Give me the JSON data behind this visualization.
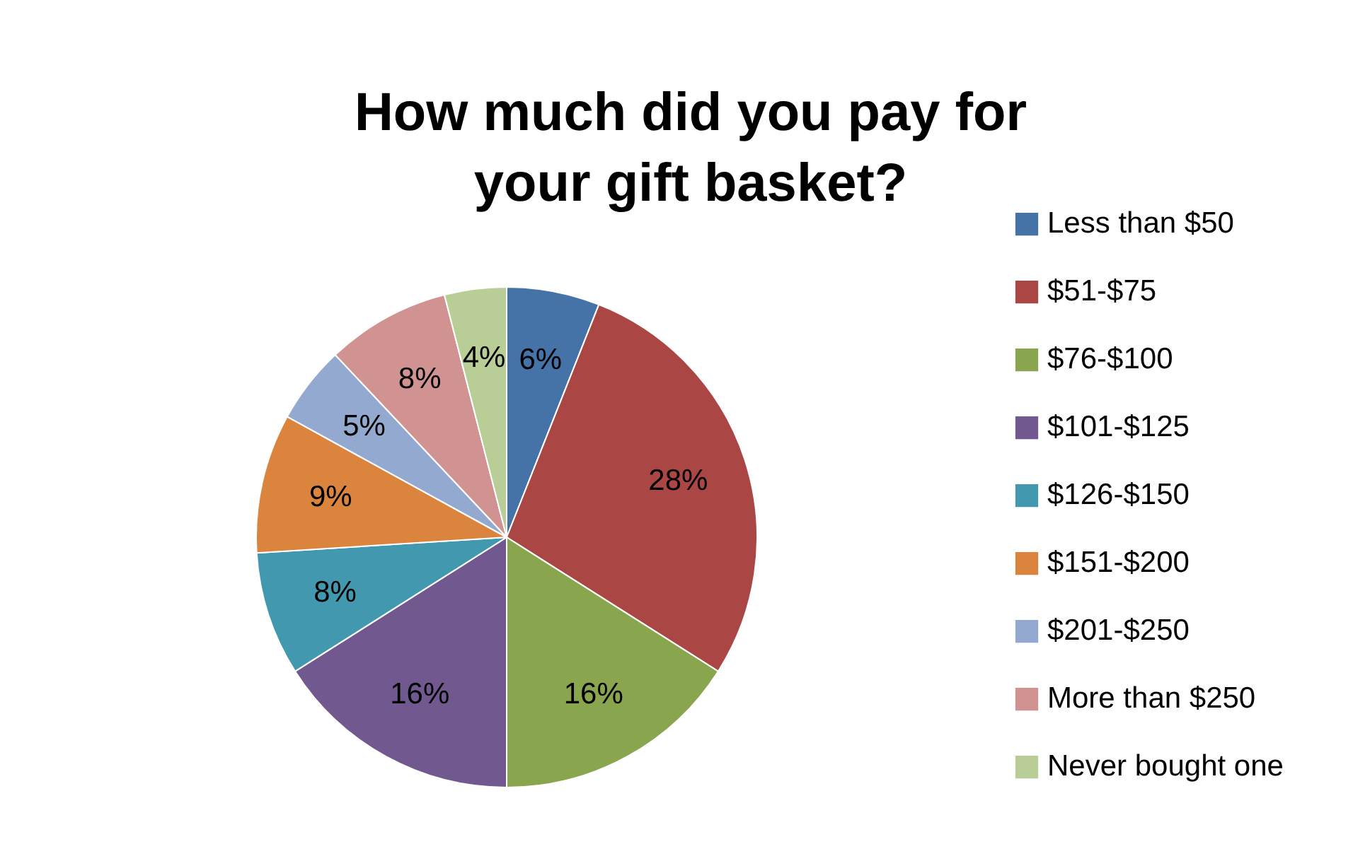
{
  "chart_data": {
    "type": "pie",
    "title": "How much did you pay for your gift basket?",
    "categories": [
      "Less than $50",
      "$51-$75",
      "$76-$100",
      "$101-$125",
      "$126-$150",
      "$151-$200",
      "$201-$250",
      "More than $250",
      "Never bought one"
    ],
    "values": [
      6,
      28,
      16,
      16,
      8,
      9,
      5,
      8,
      4
    ],
    "value_labels": [
      "6%",
      "28%",
      "16%",
      "16%",
      "8%",
      "9%",
      "5%",
      "8%",
      "4%"
    ],
    "colors": [
      "#4572a7",
      "#aa4643",
      "#89a54e",
      "#71588f",
      "#4198af",
      "#db843d",
      "#93a9cf",
      "#d19392",
      "#b9cd96"
    ],
    "legend": "right"
  }
}
